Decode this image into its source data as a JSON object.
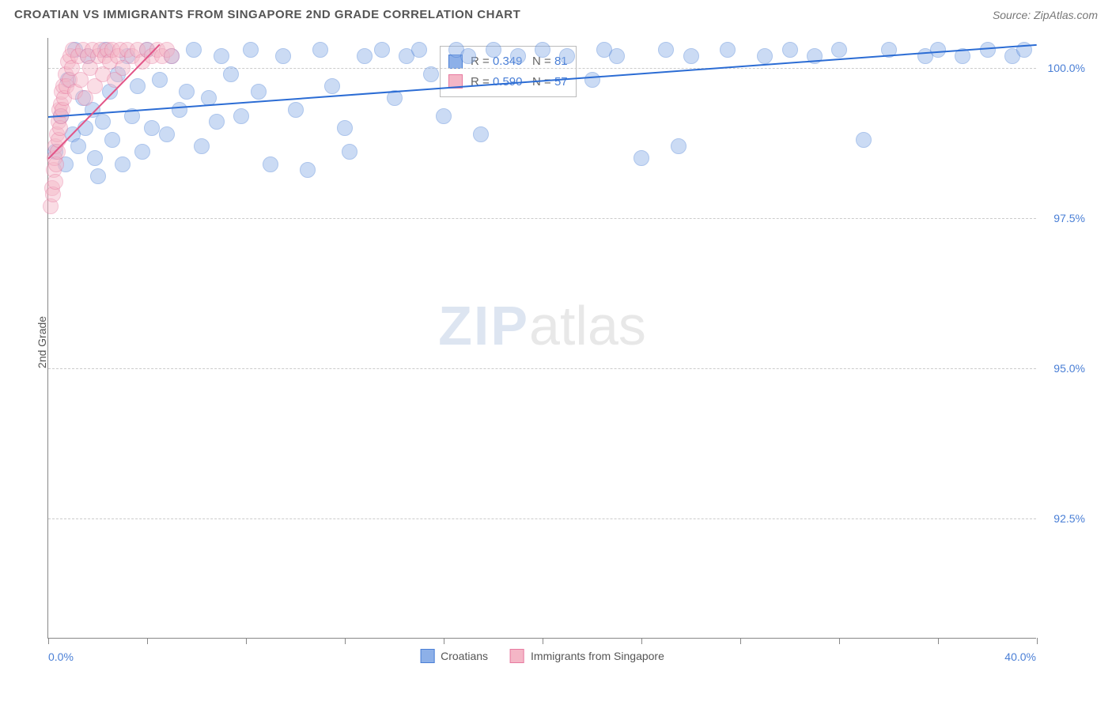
{
  "header": {
    "title": "CROATIAN VS IMMIGRANTS FROM SINGAPORE 2ND GRADE CORRELATION CHART",
    "source": "Source: ZipAtlas.com"
  },
  "chart": {
    "type": "scatter",
    "ylabel": "2nd Grade",
    "xlim": [
      0,
      40
    ],
    "ylim": [
      90.5,
      100.5
    ],
    "xaxis_min_label": "0.0%",
    "xaxis_max_label": "40.0%",
    "xtick_positions": [
      0,
      4,
      8,
      12,
      16,
      20,
      24,
      28,
      32,
      36,
      40
    ],
    "ytick_labels": [
      "100.0%",
      "97.5%",
      "95.0%",
      "92.5%"
    ],
    "ytick_values": [
      100.0,
      97.5,
      95.0,
      92.5
    ],
    "grid_color": "#cccccc",
    "background_color": "#ffffff",
    "marker_radius": 10,
    "marker_opacity": 0.45,
    "series": [
      {
        "name": "Croatians",
        "fill": "#8db0e8",
        "stroke": "#4a7fd6",
        "trend": {
          "color": "#2b6cd4",
          "x1": 0,
          "y1": 99.2,
          "x2": 40,
          "y2": 100.4
        },
        "R": "0.349",
        "N": "81",
        "points": [
          [
            0.3,
            98.6
          ],
          [
            0.5,
            99.2
          ],
          [
            0.7,
            98.4
          ],
          [
            0.8,
            99.8
          ],
          [
            1.0,
            98.9
          ],
          [
            1.1,
            100.3
          ],
          [
            1.2,
            98.7
          ],
          [
            1.4,
            99.5
          ],
          [
            1.5,
            99.0
          ],
          [
            1.6,
            100.2
          ],
          [
            1.8,
            99.3
          ],
          [
            1.9,
            98.5
          ],
          [
            2.0,
            98.2
          ],
          [
            2.2,
            99.1
          ],
          [
            2.3,
            100.3
          ],
          [
            2.5,
            99.6
          ],
          [
            2.6,
            98.8
          ],
          [
            2.8,
            99.9
          ],
          [
            3.0,
            98.4
          ],
          [
            3.2,
            100.2
          ],
          [
            3.4,
            99.2
          ],
          [
            3.6,
            99.7
          ],
          [
            3.8,
            98.6
          ],
          [
            4.0,
            100.3
          ],
          [
            4.2,
            99.0
          ],
          [
            4.5,
            99.8
          ],
          [
            4.8,
            98.9
          ],
          [
            5.0,
            100.2
          ],
          [
            5.3,
            99.3
          ],
          [
            5.6,
            99.6
          ],
          [
            5.9,
            100.3
          ],
          [
            6.2,
            98.7
          ],
          [
            6.5,
            99.5
          ],
          [
            6.8,
            99.1
          ],
          [
            7.0,
            100.2
          ],
          [
            7.4,
            99.9
          ],
          [
            7.8,
            99.2
          ],
          [
            8.2,
            100.3
          ],
          [
            8.5,
            99.6
          ],
          [
            9.0,
            98.4
          ],
          [
            9.5,
            100.2
          ],
          [
            10.0,
            99.3
          ],
          [
            10.5,
            98.3
          ],
          [
            11.0,
            100.3
          ],
          [
            11.5,
            99.7
          ],
          [
            12.0,
            99.0
          ],
          [
            12.2,
            98.6
          ],
          [
            12.8,
            100.2
          ],
          [
            13.5,
            100.3
          ],
          [
            14.0,
            99.5
          ],
          [
            14.5,
            100.2
          ],
          [
            15.0,
            100.3
          ],
          [
            15.5,
            99.9
          ],
          [
            16.0,
            99.2
          ],
          [
            16.5,
            100.3
          ],
          [
            17.0,
            100.2
          ],
          [
            17.5,
            98.9
          ],
          [
            18.0,
            100.3
          ],
          [
            19.0,
            100.2
          ],
          [
            20.0,
            100.3
          ],
          [
            21.0,
            100.2
          ],
          [
            22.0,
            99.8
          ],
          [
            22.5,
            100.3
          ],
          [
            23.0,
            100.2
          ],
          [
            24.0,
            98.5
          ],
          [
            25.0,
            100.3
          ],
          [
            25.5,
            98.7
          ],
          [
            26.0,
            100.2
          ],
          [
            27.5,
            100.3
          ],
          [
            29.0,
            100.2
          ],
          [
            30.0,
            100.3
          ],
          [
            31.0,
            100.2
          ],
          [
            32.0,
            100.3
          ],
          [
            33.0,
            98.8
          ],
          [
            34.0,
            100.3
          ],
          [
            35.5,
            100.2
          ],
          [
            36.0,
            100.3
          ],
          [
            37.0,
            100.2
          ],
          [
            38.0,
            100.3
          ],
          [
            39.0,
            100.2
          ],
          [
            39.5,
            100.3
          ]
        ]
      },
      {
        "name": "Immigrants from Singapore",
        "fill": "#f4b6c6",
        "stroke": "#e77aa0",
        "trend": {
          "color": "#e25588",
          "x1": 0,
          "y1": 98.5,
          "x2": 4.5,
          "y2": 100.4
        },
        "R": "0.590",
        "N": "57",
        "points": [
          [
            0.1,
            97.7
          ],
          [
            0.15,
            98.0
          ],
          [
            0.2,
            97.9
          ],
          [
            0.22,
            98.3
          ],
          [
            0.25,
            98.5
          ],
          [
            0.28,
            98.1
          ],
          [
            0.3,
            98.7
          ],
          [
            0.32,
            98.4
          ],
          [
            0.35,
            98.9
          ],
          [
            0.38,
            98.6
          ],
          [
            0.4,
            99.1
          ],
          [
            0.42,
            98.8
          ],
          [
            0.45,
            99.3
          ],
          [
            0.48,
            99.0
          ],
          [
            0.5,
            99.4
          ],
          [
            0.52,
            99.2
          ],
          [
            0.55,
            99.6
          ],
          [
            0.58,
            99.3
          ],
          [
            0.6,
            99.7
          ],
          [
            0.65,
            99.5
          ],
          [
            0.7,
            99.9
          ],
          [
            0.75,
            99.7
          ],
          [
            0.8,
            100.1
          ],
          [
            0.85,
            99.8
          ],
          [
            0.9,
            100.2
          ],
          [
            0.95,
            100.0
          ],
          [
            1.0,
            100.3
          ],
          [
            1.1,
            99.6
          ],
          [
            1.2,
            100.2
          ],
          [
            1.3,
            99.8
          ],
          [
            1.4,
            100.3
          ],
          [
            1.5,
            99.5
          ],
          [
            1.6,
            100.2
          ],
          [
            1.7,
            100.0
          ],
          [
            1.8,
            100.3
          ],
          [
            1.9,
            99.7
          ],
          [
            2.0,
            100.2
          ],
          [
            2.1,
            100.3
          ],
          [
            2.2,
            99.9
          ],
          [
            2.3,
            100.2
          ],
          [
            2.4,
            100.3
          ],
          [
            2.5,
            100.1
          ],
          [
            2.6,
            100.3
          ],
          [
            2.7,
            99.8
          ],
          [
            2.8,
            100.2
          ],
          [
            2.9,
            100.3
          ],
          [
            3.0,
            100.0
          ],
          [
            3.2,
            100.3
          ],
          [
            3.4,
            100.2
          ],
          [
            3.6,
            100.3
          ],
          [
            3.8,
            100.1
          ],
          [
            4.0,
            100.3
          ],
          [
            4.2,
            100.2
          ],
          [
            4.4,
            100.3
          ],
          [
            4.6,
            100.2
          ],
          [
            4.8,
            100.3
          ],
          [
            5.0,
            100.2
          ]
        ]
      }
    ],
    "watermark": {
      "zip": "ZIP",
      "atlas": "atlas"
    },
    "legend": {
      "items": [
        "Croatians",
        "Immigrants from Singapore"
      ]
    }
  }
}
